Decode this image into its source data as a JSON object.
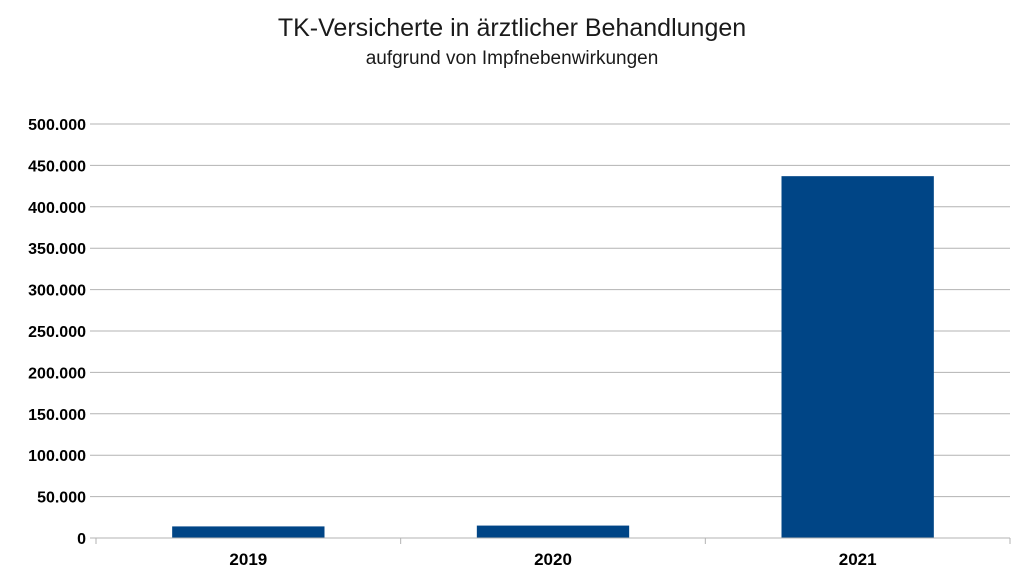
{
  "chart_data": {
    "type": "bar",
    "title": "TK-Versicherte in ärztlicher Behandlungen",
    "subtitle": "aufgrund von Impfnebenwirkungen",
    "xlabel": "",
    "ylabel": "",
    "categories": [
      "2019",
      "2020",
      "2021"
    ],
    "values": [
      14000,
      15000,
      437000
    ],
    "ylim": [
      0,
      500000
    ],
    "yticks": [
      0,
      50000,
      100000,
      150000,
      200000,
      250000,
      300000,
      350000,
      400000,
      450000,
      500000
    ],
    "ytick_labels": [
      "0",
      "50.000",
      "100.000",
      "150.000",
      "200.000",
      "250.000",
      "300.000",
      "350.000",
      "400.000",
      "450.000",
      "500.000"
    ],
    "grid": true,
    "legend": "none",
    "bar_color": "#004586",
    "grid_color": "#b3b3b3"
  }
}
